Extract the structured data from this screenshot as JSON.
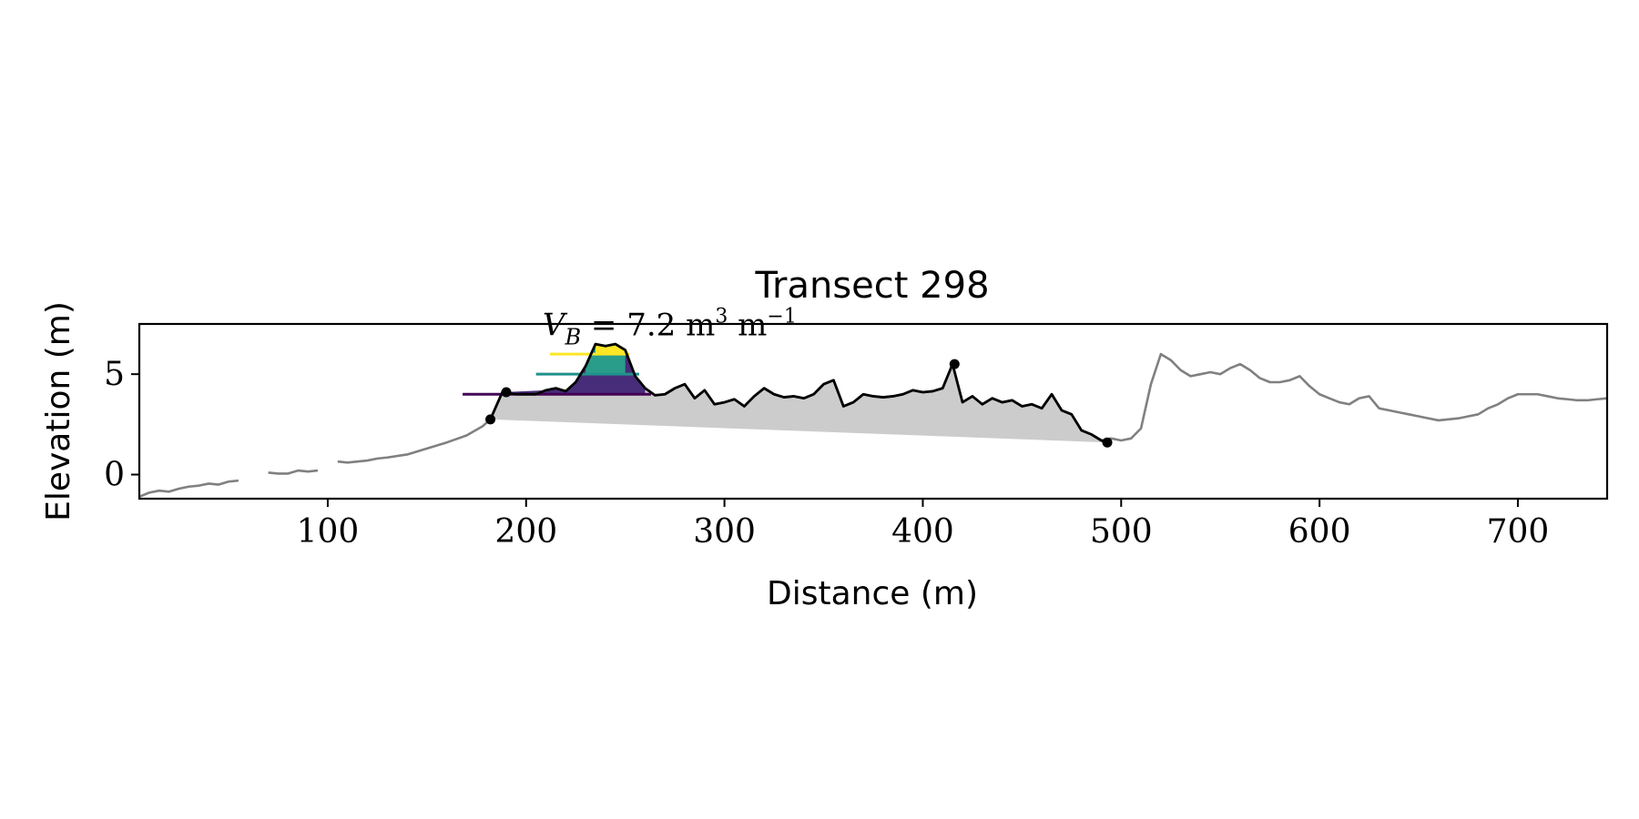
{
  "chart_data": {
    "type": "line",
    "title": "Transect 298",
    "xlabel": "Distance (m)",
    "ylabel": "Elevation (m)",
    "xlim": [
      5,
      745
    ],
    "ylim": [
      -1.2,
      7.5
    ],
    "xticks": [
      100,
      200,
      300,
      400,
      500,
      600,
      700
    ],
    "yticks": [
      0,
      5
    ],
    "grid": false,
    "legend": "none",
    "annotation": {
      "var": "V",
      "sub": "B",
      "eq": " = 7.2 m",
      "sup1": "3",
      "unit2": " m",
      "sup2": "−1",
      "x": 212,
      "y": 6.3
    },
    "profile": {
      "color": "#808080",
      "segments": [
        [
          [
            5,
            -1.1
          ],
          [
            10,
            -0.9
          ],
          [
            15,
            -0.8
          ],
          [
            20,
            -0.85
          ],
          [
            25,
            -0.7
          ],
          [
            30,
            -0.6
          ],
          [
            35,
            -0.55
          ],
          [
            40,
            -0.45
          ],
          [
            45,
            -0.5
          ],
          [
            50,
            -0.35
          ],
          [
            55,
            -0.3
          ]
        ],
        [
          [
            70,
            0.1
          ],
          [
            75,
            0.05
          ],
          [
            80,
            0.05
          ],
          [
            85,
            0.2
          ],
          [
            90,
            0.15
          ],
          [
            95,
            0.2
          ]
        ],
        [
          [
            105,
            0.65
          ],
          [
            110,
            0.6
          ],
          [
            115,
            0.65
          ],
          [
            120,
            0.7
          ],
          [
            125,
            0.8
          ],
          [
            130,
            0.85
          ],
          [
            140,
            1.0
          ],
          [
            150,
            1.3
          ],
          [
            160,
            1.6
          ],
          [
            170,
            1.95
          ],
          [
            178,
            2.4
          ],
          [
            182,
            2.75
          ],
          [
            188,
            4.1
          ],
          [
            195,
            4.0
          ],
          [
            205,
            4.0
          ],
          [
            210,
            4.2
          ],
          [
            215,
            4.3
          ],
          [
            220,
            4.15
          ],
          [
            225,
            4.6
          ],
          [
            230,
            5.4
          ],
          [
            235,
            6.5
          ],
          [
            240,
            6.4
          ],
          [
            245,
            6.5
          ],
          [
            250,
            6.2
          ],
          [
            255,
            4.9
          ],
          [
            260,
            4.3
          ],
          [
            265,
            3.95
          ],
          [
            270,
            4.0
          ],
          [
            275,
            4.3
          ],
          [
            280,
            4.5
          ],
          [
            285,
            3.8
          ],
          [
            290,
            4.2
          ],
          [
            295,
            3.5
          ],
          [
            300,
            3.6
          ],
          [
            305,
            3.75
          ],
          [
            310,
            3.4
          ],
          [
            315,
            3.9
          ],
          [
            320,
            4.3
          ],
          [
            325,
            4.0
          ],
          [
            330,
            3.85
          ],
          [
            335,
            3.9
          ],
          [
            340,
            3.8
          ],
          [
            345,
            4.0
          ],
          [
            350,
            4.5
          ],
          [
            355,
            4.7
          ],
          [
            360,
            3.4
          ],
          [
            365,
            3.6
          ],
          [
            370,
            4.0
          ],
          [
            375,
            3.9
          ],
          [
            380,
            3.85
          ],
          [
            385,
            3.9
          ],
          [
            390,
            4.0
          ],
          [
            395,
            4.2
          ],
          [
            400,
            4.1
          ],
          [
            405,
            4.15
          ],
          [
            410,
            4.3
          ],
          [
            415,
            5.5
          ],
          [
            420,
            3.6
          ],
          [
            425,
            3.9
          ],
          [
            430,
            3.5
          ],
          [
            435,
            3.8
          ],
          [
            440,
            3.6
          ],
          [
            445,
            3.7
          ],
          [
            450,
            3.4
          ],
          [
            455,
            3.5
          ],
          [
            460,
            3.3
          ],
          [
            465,
            4.0
          ],
          [
            470,
            3.2
          ],
          [
            475,
            3.0
          ],
          [
            480,
            2.2
          ],
          [
            485,
            2.0
          ],
          [
            490,
            1.7
          ],
          [
            495,
            1.8
          ],
          [
            500,
            1.7
          ],
          [
            505,
            1.8
          ],
          [
            510,
            2.3
          ],
          [
            515,
            4.5
          ],
          [
            520,
            6.0
          ],
          [
            525,
            5.7
          ],
          [
            530,
            5.2
          ],
          [
            535,
            4.9
          ],
          [
            540,
            5.0
          ],
          [
            545,
            5.1
          ],
          [
            550,
            5.0
          ],
          [
            555,
            5.3
          ],
          [
            560,
            5.5
          ],
          [
            565,
            5.2
          ],
          [
            570,
            4.8
          ],
          [
            575,
            4.6
          ],
          [
            580,
            4.6
          ],
          [
            585,
            4.7
          ],
          [
            590,
            4.9
          ],
          [
            595,
            4.4
          ],
          [
            600,
            4.0
          ],
          [
            605,
            3.8
          ],
          [
            610,
            3.6
          ],
          [
            615,
            3.5
          ],
          [
            620,
            3.8
          ],
          [
            625,
            3.9
          ],
          [
            630,
            3.3
          ],
          [
            635,
            3.2
          ],
          [
            640,
            3.1
          ],
          [
            645,
            3.0
          ],
          [
            650,
            2.9
          ],
          [
            655,
            2.8
          ],
          [
            660,
            2.7
          ],
          [
            665,
            2.75
          ],
          [
            670,
            2.8
          ],
          [
            675,
            2.9
          ],
          [
            680,
            3.0
          ],
          [
            685,
            3.3
          ],
          [
            690,
            3.5
          ],
          [
            695,
            3.8
          ],
          [
            700,
            4.0
          ],
          [
            705,
            4.0
          ],
          [
            710,
            4.0
          ],
          [
            715,
            3.9
          ],
          [
            720,
            3.8
          ],
          [
            725,
            3.75
          ],
          [
            730,
            3.7
          ],
          [
            735,
            3.7
          ],
          [
            740,
            3.75
          ],
          [
            745,
            3.8
          ]
        ]
      ]
    },
    "selected_profile": {
      "color": "#000000",
      "x0": 182,
      "x1": 493
    },
    "fill_region": {
      "color": "#cccccc",
      "x0": 182,
      "y0": 2.75,
      "x1": 493,
      "y1": 1.6
    },
    "key_points": [
      [
        182,
        2.75
      ],
      [
        190,
        4.1
      ],
      [
        416,
        5.5
      ],
      [
        493,
        1.6
      ]
    ],
    "berm_levels": [
      {
        "y": 4.0,
        "x0": 168,
        "x1": 263,
        "color": "#440154",
        "fill": "#472c7a"
      },
      {
        "y": 5.0,
        "x0": 205,
        "x1": 257,
        "color": "#21918c",
        "fill": "#2a9d8a"
      },
      {
        "y": 6.0,
        "x0": 212,
        "x1": 252,
        "color": "#fde725",
        "fill": "#fde725"
      }
    ]
  }
}
